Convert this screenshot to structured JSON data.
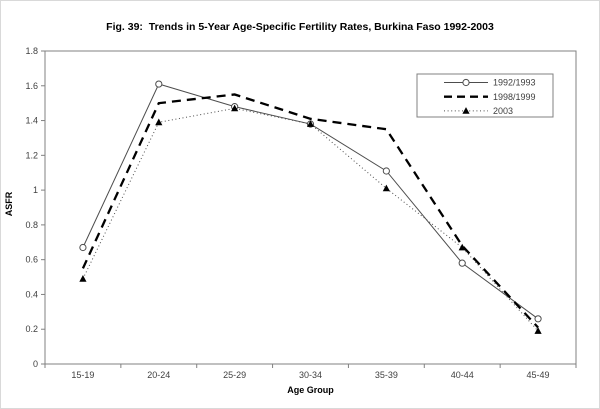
{
  "title": "Fig. 39:  Trends in 5-Year Age-Specific Fertility Rates, Burkina Faso 1992-2003",
  "chart_data": {
    "type": "line",
    "categories": [
      "15-19",
      "20-24",
      "25-29",
      "30-34",
      "35-39",
      "40-44",
      "45-49"
    ],
    "series": [
      {
        "name": "1992/1993",
        "values": [
          0.67,
          1.61,
          1.48,
          1.38,
          1.11,
          0.58,
          0.26
        ],
        "line": "solid",
        "marker": "circle-open"
      },
      {
        "name": "1998/1999",
        "values": [
          0.55,
          1.5,
          1.55,
          1.41,
          1.35,
          0.68,
          0.21
        ],
        "line": "dashed-bold",
        "marker": "none"
      },
      {
        "name": "2003",
        "values": [
          0.49,
          1.39,
          1.47,
          1.38,
          1.01,
          0.67,
          0.19
        ],
        "line": "dotted",
        "marker": "triangle-filled"
      }
    ],
    "xlabel": "Age Group",
    "ylabel": "ASFR",
    "ylim": [
      0,
      1.8
    ],
    "ytick_step": 0.2,
    "yticks": [
      "0",
      "0.2",
      "0.4",
      "0.6",
      "0.8",
      "1",
      "1.2",
      "1.4",
      "1.6",
      "1.8"
    ],
    "grid": false,
    "legend_position": "top-right"
  },
  "colors": {
    "background": "#ffffff",
    "frame": "#808080",
    "tick_text": "#404040",
    "series_solid": "#4d4d4d",
    "series_dashed": "#000000",
    "series_dotted": "#4d4d4d",
    "marker_fill_open": "#ffffff",
    "marker_fill_triangle": "#000000"
  }
}
